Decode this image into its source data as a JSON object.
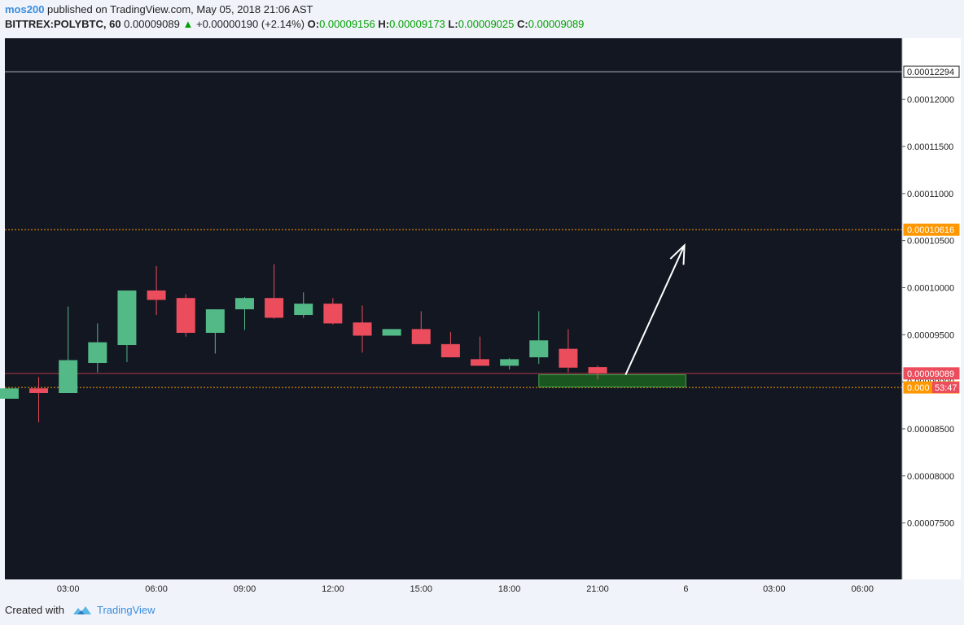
{
  "header": {
    "user": "mos200",
    "published": "published on TradingView.com, May 05, 2018 21:06 AST",
    "symbol": "BITTREX:POLYBTC, 60",
    "last": "0.00009089",
    "change": "+0.00000190 (+2.14%)",
    "o_label": "O:",
    "o_value": "0.00009156",
    "h_label": "H:",
    "h_value": "0.00009173",
    "l_label": "L:",
    "l_value": "0.00009025",
    "c_label": "C:",
    "c_value": "0.00009089"
  },
  "footer": {
    "created_with": "Created with",
    "brand": "TradingView"
  },
  "colors": {
    "background": "#131722",
    "up": "#53b987",
    "down": "#eb4d5c",
    "level": "#ff9800",
    "box": "#1b5e20",
    "arrow": "#ffffff",
    "text": "#222222"
  },
  "chart_data": {
    "type": "candlestick",
    "ylim": [
      6.9e-05,
      0.0001265
    ],
    "xlim": [
      0.85,
      31.35
    ],
    "y_ticks": [
      "0.00012000",
      "0.00011500",
      "0.00011000",
      "0.00010500",
      "0.00010000",
      "0.00009500",
      "0.00009000",
      "0.00008500",
      "0.00008000",
      "0.00007500"
    ],
    "x_ticks": [
      {
        "x": 3,
        "label": "03:00"
      },
      {
        "x": 6,
        "label": "06:00"
      },
      {
        "x": 9,
        "label": "09:00"
      },
      {
        "x": 12,
        "label": "12:00"
      },
      {
        "x": 15,
        "label": "15:00"
      },
      {
        "x": 18,
        "label": "18:00"
      },
      {
        "x": 21,
        "label": "21:00"
      },
      {
        "x": 24,
        "label": "6"
      },
      {
        "x": 27,
        "label": "03:00"
      },
      {
        "x": 30,
        "label": "06:00"
      }
    ],
    "candles": [
      {
        "x": 1,
        "o": 8.82e-05,
        "h": 8.93e-05,
        "l": 8.82e-05,
        "c": 8.93e-05
      },
      {
        "x": 2,
        "o": 8.93e-05,
        "h": 9.05e-05,
        "l": 8.57e-05,
        "c": 8.88e-05
      },
      {
        "x": 3,
        "o": 8.88e-05,
        "h": 9.8e-05,
        "l": 8.88e-05,
        "c": 9.23e-05
      },
      {
        "x": 4,
        "o": 9.2e-05,
        "h": 9.62e-05,
        "l": 9.1e-05,
        "c": 9.42e-05
      },
      {
        "x": 5,
        "o": 9.39e-05,
        "h": 9.97e-05,
        "l": 9.21e-05,
        "c": 9.97e-05
      },
      {
        "x": 6,
        "o": 9.97e-05,
        "h": 0.0001023,
        "l": 9.71e-05,
        "c": 9.87e-05
      },
      {
        "x": 7,
        "o": 9.89e-05,
        "h": 9.93e-05,
        "l": 9.48e-05,
        "c": 9.52e-05
      },
      {
        "x": 8,
        "o": 9.52e-05,
        "h": 9.77e-05,
        "l": 9.3e-05,
        "c": 9.77e-05
      },
      {
        "x": 9,
        "o": 9.77e-05,
        "h": 9.9e-05,
        "l": 9.55e-05,
        "c": 9.89e-05
      },
      {
        "x": 10,
        "o": 9.89e-05,
        "h": 0.0001025,
        "l": 9.67e-05,
        "c": 9.68e-05
      },
      {
        "x": 11,
        "o": 9.71e-05,
        "h": 9.95e-05,
        "l": 9.68e-05,
        "c": 9.83e-05
      },
      {
        "x": 12,
        "o": 9.83e-05,
        "h": 9.89e-05,
        "l": 9.61e-05,
        "c": 9.62e-05
      },
      {
        "x": 13,
        "o": 9.63e-05,
        "h": 9.81e-05,
        "l": 9.31e-05,
        "c": 9.49e-05
      },
      {
        "x": 14,
        "o": 9.49e-05,
        "h": 9.56e-05,
        "l": 9.49e-05,
        "c": 9.56e-05
      },
      {
        "x": 15,
        "o": 9.56e-05,
        "h": 9.75e-05,
        "l": 9.4e-05,
        "c": 9.4e-05
      },
      {
        "x": 16,
        "o": 9.4e-05,
        "h": 9.53e-05,
        "l": 9.26e-05,
        "c": 9.26e-05
      },
      {
        "x": 17,
        "o": 9.24e-05,
        "h": 9.48e-05,
        "l": 9.17e-05,
        "c": 9.17e-05
      },
      {
        "x": 18,
        "o": 9.17e-05,
        "h": 9.25e-05,
        "l": 9.13e-05,
        "c": 9.24e-05
      },
      {
        "x": 19,
        "o": 9.26e-05,
        "h": 9.75e-05,
        "l": 9.19e-05,
        "c": 9.44e-05
      },
      {
        "x": 20,
        "o": 9.35e-05,
        "h": 9.56e-05,
        "l": 9.1e-05,
        "c": 9.15e-05
      },
      {
        "x": 21,
        "o": 9.156e-05,
        "h": 9.173e-05,
        "l": 9.025e-05,
        "c": 9.089e-05
      }
    ],
    "lines": [
      {
        "y": 0.00012294,
        "label": "0.00012294",
        "style": "top"
      },
      {
        "y": 0.00010616,
        "label": "0.00010616",
        "style": "level"
      },
      {
        "y": 8.94e-05,
        "label": "0.000",
        "style": "level"
      },
      {
        "y": 9.089e-05,
        "label": "0.00009089",
        "style": "last"
      }
    ],
    "countdown": "53:47",
    "zone": {
      "x0": 19.0,
      "x1": 24.0,
      "y0": 8.945e-05,
      "y1": 9.075e-05
    },
    "arrow": {
      "x0": 21.95,
      "y0": 9.075e-05,
      "x1": 23.95,
      "y1": 0.0001045
    }
  }
}
